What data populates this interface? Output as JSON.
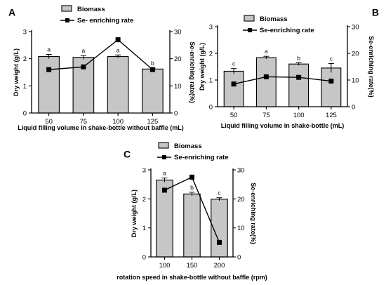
{
  "chart_data": [
    {
      "panel": "A",
      "type": "bar",
      "categories": [
        "50",
        "75",
        "100",
        "125"
      ],
      "xlabel": "Liquid filling volume in shake-bottle without baffle (mL)",
      "ylabel": "Dry weight (g/L)",
      "y2label": "Se-enriching rate(%)",
      "ylim": [
        0,
        3
      ],
      "y2lim": [
        0,
        30
      ],
      "yticks": [
        "0",
        "1",
        "2",
        "3"
      ],
      "y2ticks": [
        "0",
        "10",
        "20",
        "30"
      ],
      "series": [
        {
          "name": "Biomass",
          "axis": "left",
          "kind": "bar",
          "values": [
            2.08,
            2.05,
            2.08,
            1.62
          ],
          "errors": [
            0.08,
            0.07,
            0.06,
            0.04
          ],
          "labels": [
            "a",
            "a",
            "a",
            "b"
          ]
        },
        {
          "name": "Se- enriching rate",
          "axis": "right",
          "kind": "line",
          "values": [
            16,
            17,
            27,
            16
          ]
        }
      ],
      "legend": "top-center"
    },
    {
      "panel": "B",
      "type": "bar",
      "categories": [
        "50",
        "75",
        "100",
        "125"
      ],
      "xlabel": "Liquid filling volume in shake-bottle (mL)",
      "ylabel": "Dry weight (g/L)",
      "y2label": "Se-enriching rate(%)",
      "ylim": [
        0,
        3
      ],
      "y2lim": [
        0,
        30
      ],
      "yticks": [
        "0",
        "1",
        "2",
        "3"
      ],
      "y2ticks": [
        "0",
        "10",
        "20",
        "30"
      ],
      "series": [
        {
          "name": "Biomass",
          "axis": "left",
          "kind": "bar",
          "values": [
            1.33,
            1.84,
            1.6,
            1.45
          ],
          "errors": [
            0.1,
            0.05,
            0.05,
            0.17
          ],
          "labels": [
            "c",
            "a",
            "b",
            "c"
          ]
        },
        {
          "name": "Se-enriching rate",
          "axis": "right",
          "kind": "line",
          "values": [
            8.5,
            11.2,
            11,
            9.6
          ]
        }
      ],
      "legend": "top-center"
    },
    {
      "panel": "C",
      "type": "bar",
      "categories": [
        "100",
        "150",
        "200"
      ],
      "xlabel": "rotation speed in shake-bottle without baffle (rpm)",
      "ylabel": "Dry weight (g/L)",
      "y2label": "Se-enriching rate(%)",
      "ylim": [
        0,
        3
      ],
      "y2lim": [
        0,
        30
      ],
      "yticks": [
        "0",
        "1",
        "2",
        "3"
      ],
      "y2ticks": [
        "0",
        "10",
        "20",
        "30"
      ],
      "series": [
        {
          "name": "Biomass",
          "axis": "left",
          "kind": "bar",
          "values": [
            2.65,
            2.17,
            1.99
          ],
          "errors": [
            0.07,
            0.06,
            0.05
          ],
          "labels": [
            "a",
            "b",
            "c"
          ]
        },
        {
          "name": "Se-enriching rate",
          "axis": "right",
          "kind": "line",
          "values": [
            23,
            27.5,
            5
          ]
        }
      ],
      "legend": "top-center"
    }
  ]
}
